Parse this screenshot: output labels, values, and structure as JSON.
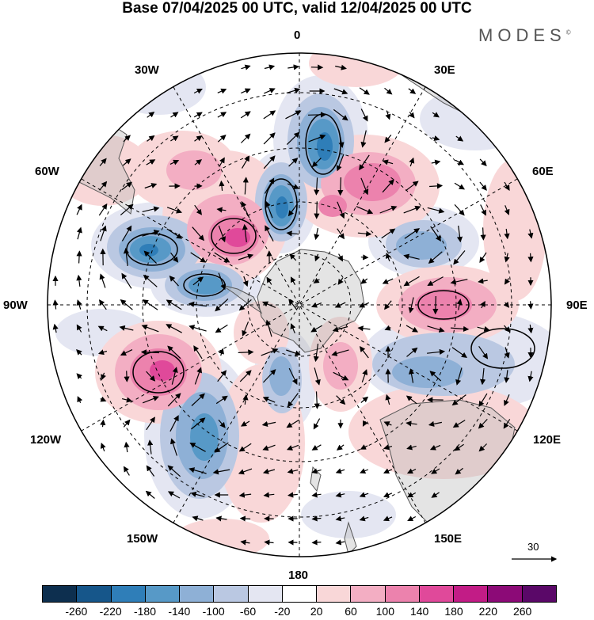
{
  "title": "Base 07/04/2025 00 UTC, valid 12/04/2025 00 UTC",
  "brand": "MODES",
  "brand_mark": "©",
  "lon_labels": {
    "n0": "0",
    "n30e": "30E",
    "n60e": "60E",
    "n90e": "90E",
    "n120e": "120E",
    "n150e": "150E",
    "n180": "180",
    "n150w": "150W",
    "n120w": "120W",
    "n90w": "90W",
    "n60w": "60W",
    "n30w": "30W"
  },
  "vector_scale_label": "30",
  "colorbar": {
    "colors": [
      "#0d2f4f",
      "#16568a",
      "#2f7eb8",
      "#5799c7",
      "#8eb0d6",
      "#bac8e2",
      "#e4e6f2",
      "#ffffff",
      "#f9d7d8",
      "#f3aec3",
      "#ec82ad",
      "#e0499a",
      "#c21c86",
      "#8c0a77",
      "#5a0868"
    ],
    "labels": [
      "-260",
      "-220",
      "-180",
      "-140",
      "-100",
      "-60",
      "-20",
      "20",
      "60",
      "100",
      "140",
      "180",
      "220",
      "260"
    ]
  },
  "map_data": {
    "projection": "south polar stereographic",
    "field": "anomaly (shaded) with wind vectors",
    "anomaly_centers": [
      {
        "lon": 5,
        "lat": -45,
        "value": -200
      },
      {
        "lon": 30,
        "lat": -50,
        "value": 150
      },
      {
        "lon": -10,
        "lat": -60,
        "value": -230
      },
      {
        "lon": -40,
        "lat": -60,
        "value": 160
      },
      {
        "lon": -60,
        "lat": -50,
        "value": -220
      },
      {
        "lon": -80,
        "lat": -62,
        "value": -180
      },
      {
        "lon": 60,
        "lat": -50,
        "value": -120
      },
      {
        "lon": 90,
        "lat": -55,
        "value": 140
      },
      {
        "lon": 115,
        "lat": -45,
        "value": -100
      },
      {
        "lon": -115,
        "lat": -50,
        "value": 180
      },
      {
        "lon": -145,
        "lat": -45,
        "value": -170
      },
      {
        "lon": 175,
        "lat": -60,
        "value": -80
      }
    ]
  }
}
